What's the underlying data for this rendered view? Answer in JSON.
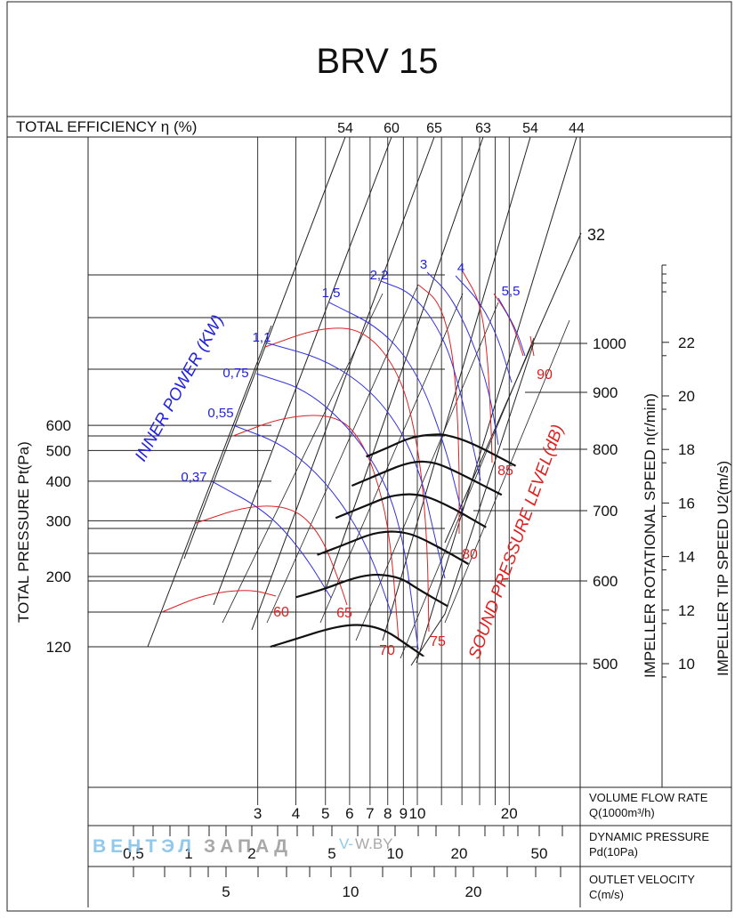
{
  "chart_data": {
    "type": "line",
    "title": "BRV 15",
    "efficiency": {
      "label": "TOTAL EFFICIENCY η (%)",
      "values": [
        "54",
        "60",
        "65",
        "63",
        "54",
        "44",
        "32"
      ]
    },
    "y_left": {
      "label": "TOTAL PRESSURE Pt(Pa)",
      "ticks": [
        120,
        200,
        300,
        400,
        500,
        600
      ],
      "scale": "log"
    },
    "y_right_speed": {
      "label": "IMPELLER ROTATIONAL SPEED n(r/min)",
      "ticks": [
        500,
        600,
        700,
        800,
        900,
        1000
      ]
    },
    "y_right_tip": {
      "label": "IMPELLER TIP SPEED U2(m/s)",
      "ticks": [
        10,
        12,
        14,
        16,
        18,
        20,
        22
      ]
    },
    "x_flow": {
      "label_line1": "VOLUME FLOW RATE",
      "label_line2": "Q(1000m³/h)",
      "ticks": [
        "3",
        "4",
        "5",
        "6",
        "7",
        "8",
        "9",
        "10",
        "20"
      ]
    },
    "x_dynamic": {
      "label_line1": "DYNAMIC PRESSURE",
      "label_line2": "Pd(10Pa)",
      "ticks": [
        "0,5",
        "1",
        "2",
        "5",
        "10",
        "20",
        "50"
      ]
    },
    "x_velocity": {
      "label_line1": "OUTLET VELOCITY",
      "label_line2": "C(m/s)",
      "ticks": [
        "5",
        "10",
        "20"
      ]
    },
    "inner_power": {
      "label": "INNER POWER (KW)",
      "values": [
        "0,37",
        "0,55",
        "0,75",
        "1,1",
        "1,5",
        "2,2",
        "3",
        "4",
        "5,5"
      ]
    },
    "sound": {
      "label": "SOUND PRESSURE LEVEL(dB)",
      "values": [
        "60",
        "65",
        "70",
        "75",
        "80",
        "85",
        "90"
      ]
    },
    "series": [
      {
        "speed": 500,
        "x": [
          3.3,
          4,
          5,
          6,
          7,
          8,
          9,
          10.5
        ],
        "y": [
          120,
          127,
          136,
          141,
          140,
          134,
          124,
          112
        ]
      },
      {
        "speed": 600,
        "x": [
          4,
          5,
          6,
          7,
          8,
          9,
          10,
          12.6
        ],
        "y": [
          172,
          183,
          196,
          203,
          202,
          196,
          183,
          161
        ]
      },
      {
        "speed": 700,
        "x": [
          4.7,
          6,
          7,
          8,
          9,
          10,
          12,
          14.7
        ],
        "y": [
          234,
          256,
          272,
          278,
          276,
          268,
          245,
          219
        ]
      },
      {
        "speed": 800,
        "x": [
          5.4,
          7,
          8,
          9,
          10,
          11,
          13,
          16.8
        ],
        "y": [
          306,
          339,
          357,
          364,
          363,
          355,
          330,
          286
        ]
      },
      {
        "speed": 900,
        "x": [
          6.1,
          8,
          9,
          10,
          11,
          12,
          14,
          18.9
        ],
        "y": [
          387,
          432,
          452,
          462,
          460,
          450,
          420,
          362
        ]
      },
      {
        "speed": 1000,
        "x": [
          6.8,
          8,
          9,
          10,
          11.5,
          12.5,
          15,
          21
        ],
        "y": [
          478,
          510,
          538,
          555,
          563,
          560,
          530,
          447
        ]
      }
    ],
    "grid": true,
    "legend": "none"
  },
  "watermark": {
    "brand_part1": "ВЕНТЭЛ",
    "brand_part2": "ЗАПАД",
    "site_part1": "V-",
    "site_part2": "W.BY"
  }
}
